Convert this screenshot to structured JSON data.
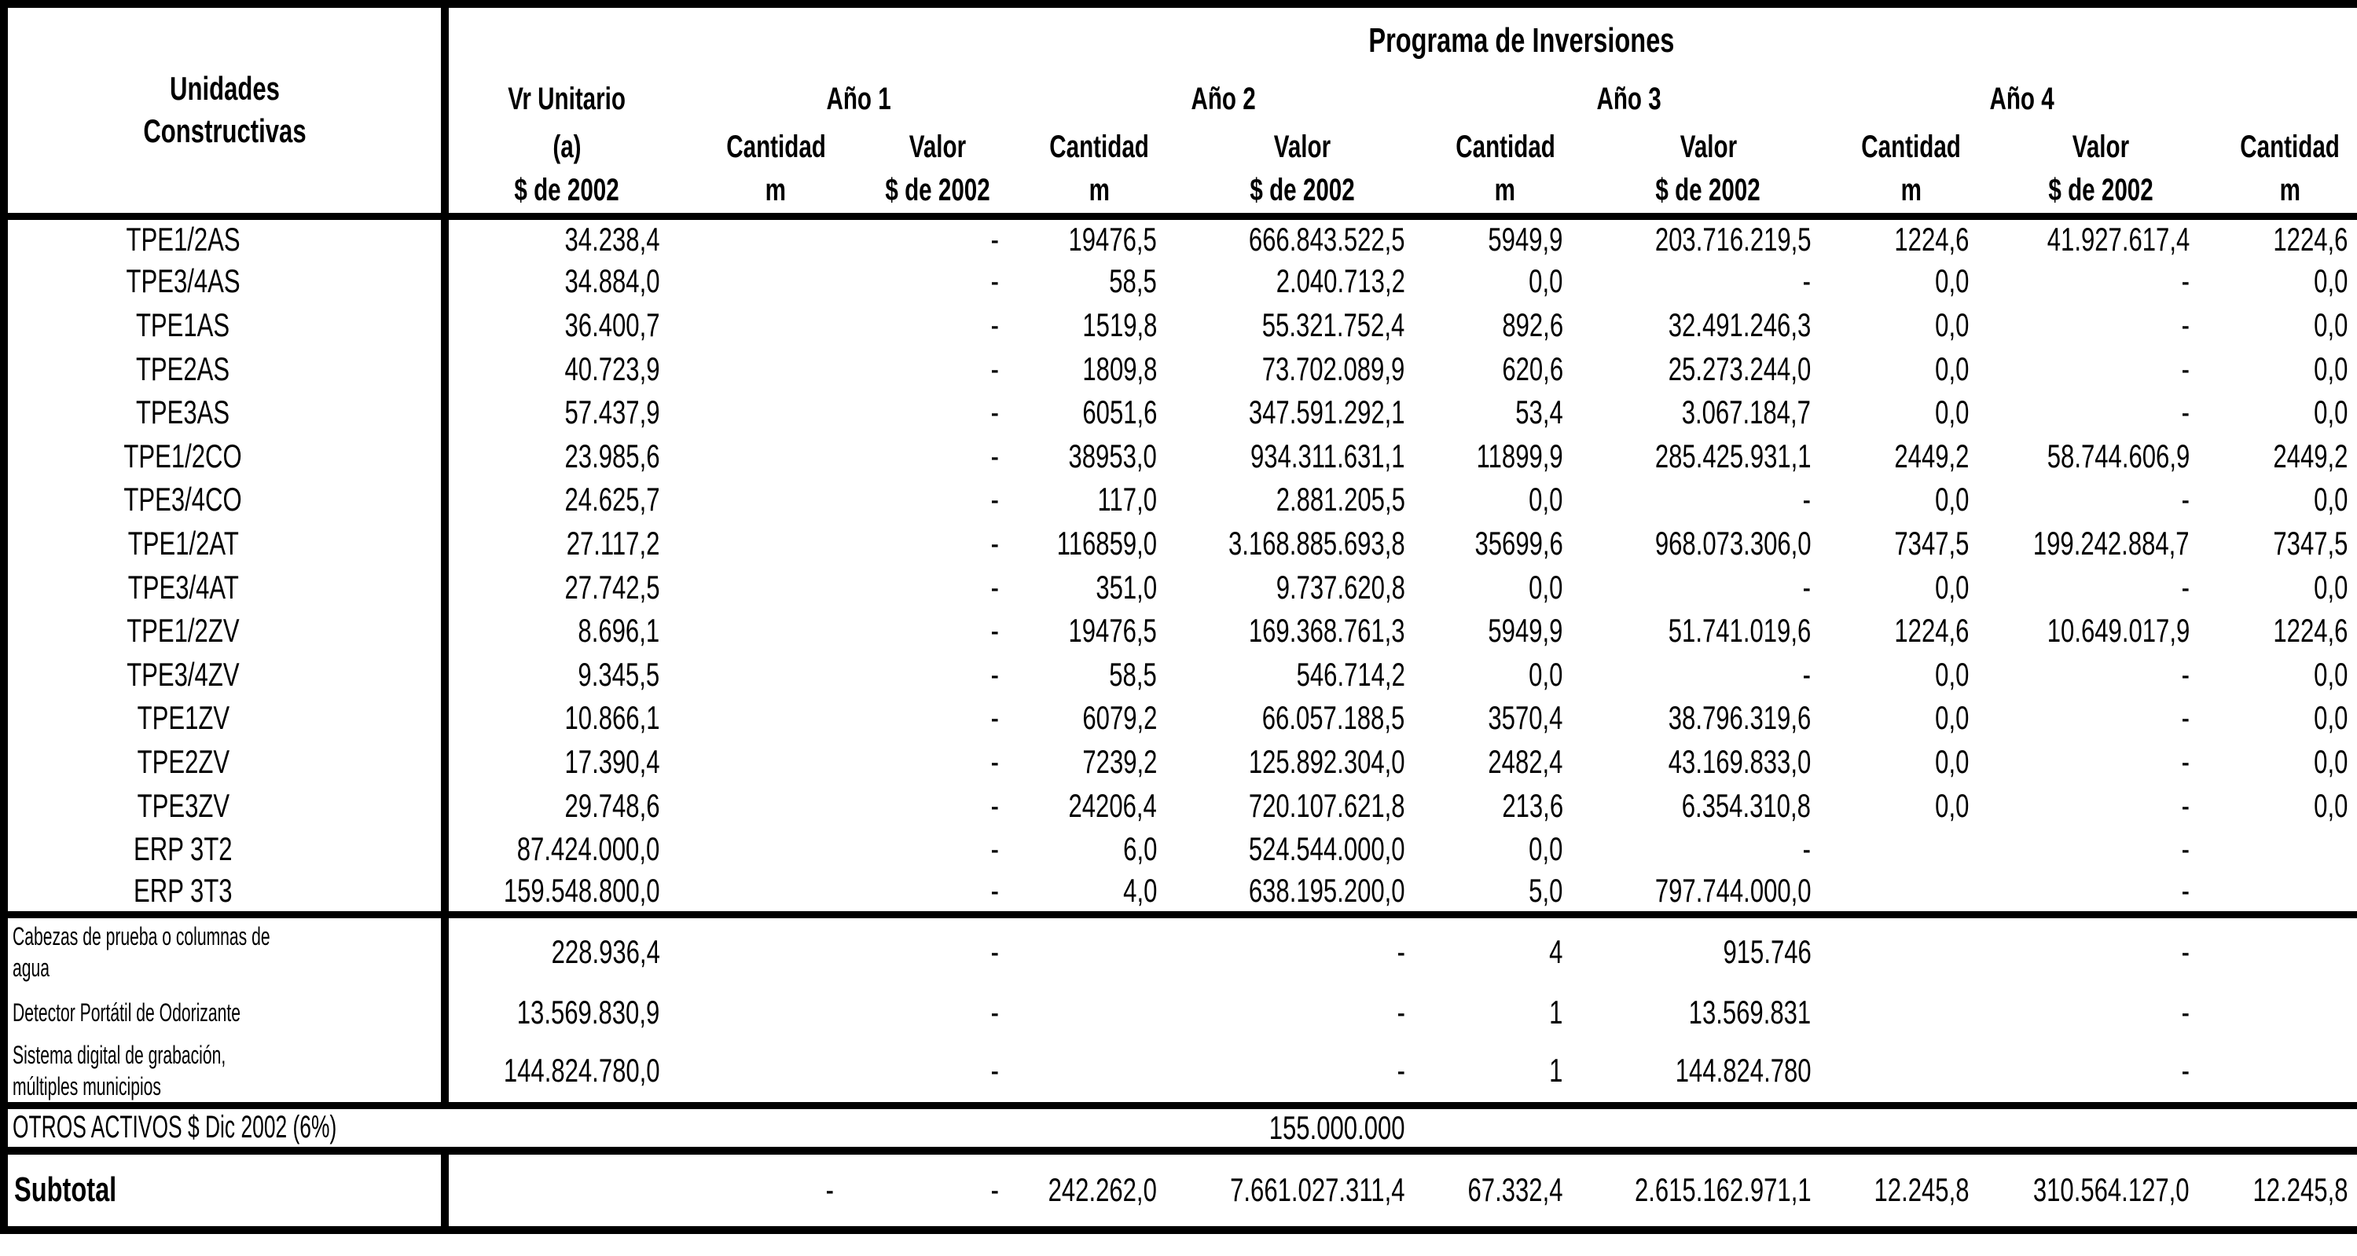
{
  "table": {
    "title": "Programa de Inversiones",
    "col1_header": "Unidades Constructivas",
    "vr_header": {
      "l1": "Vr Unitario",
      "l2": "(a)",
      "l3": "$ de 2002"
    },
    "year_headers": [
      "Año 1",
      "Año 2",
      "Año 3",
      "Año 4"
    ],
    "sub_headers": {
      "cantidad": "Cantidad",
      "valor": "Valor",
      "m": "m",
      "money": "$ de 2002"
    },
    "rows": [
      {
        "label": "TPE1/2AS",
        "vr": "34.238,4",
        "a1c": "",
        "a1v": "-",
        "a2c": "19476,5",
        "a2v": "666.843.522,5",
        "a3c": "5949,9",
        "a3v": "203.716.219,5",
        "a4c": "1224,6",
        "a4v": "41.927.617,4",
        "a5c": "1224,6"
      },
      {
        "label": "TPE3/4AS",
        "vr": "34.884,0",
        "a1c": "",
        "a1v": "-",
        "a2c": "58,5",
        "a2v": "2.040.713,2",
        "a3c": "0,0",
        "a3v": "-",
        "a4c": "0,0",
        "a4v": "-",
        "a5c": "0,0"
      },
      {
        "label": "TPE1AS",
        "vr": "36.400,7",
        "a1c": "",
        "a1v": "-",
        "a2c": "1519,8",
        "a2v": "55.321.752,4",
        "a3c": "892,6",
        "a3v": "32.491.246,3",
        "a4c": "0,0",
        "a4v": "-",
        "a5c": "0,0"
      },
      {
        "label": "TPE2AS",
        "vr": "40.723,9",
        "a1c": "",
        "a1v": "-",
        "a2c": "1809,8",
        "a2v": "73.702.089,9",
        "a3c": "620,6",
        "a3v": "25.273.244,0",
        "a4c": "0,0",
        "a4v": "-",
        "a5c": "0,0"
      },
      {
        "label": "TPE3AS",
        "vr": "57.437,9",
        "a1c": "",
        "a1v": "-",
        "a2c": "6051,6",
        "a2v": "347.591.292,1",
        "a3c": "53,4",
        "a3v": "3.067.184,7",
        "a4c": "0,0",
        "a4v": "-",
        "a5c": "0,0"
      },
      {
        "label": "TPE1/2CO",
        "vr": "23.985,6",
        "a1c": "",
        "a1v": "-",
        "a2c": "38953,0",
        "a2v": "934.311.631,1",
        "a3c": "11899,9",
        "a3v": "285.425.931,1",
        "a4c": "2449,2",
        "a4v": "58.744.606,9",
        "a5c": "2449,2"
      },
      {
        "label": "TPE3/4CO",
        "vr": "24.625,7",
        "a1c": "",
        "a1v": "-",
        "a2c": "117,0",
        "a2v": "2.881.205,5",
        "a3c": "0,0",
        "a3v": "-",
        "a4c": "0,0",
        "a4v": "-",
        "a5c": "0,0"
      },
      {
        "label": "TPE1/2AT",
        "vr": "27.117,2",
        "a1c": "",
        "a1v": "-",
        "a2c": "116859,0",
        "a2v": "3.168.885.693,8",
        "a3c": "35699,6",
        "a3v": "968.073.306,0",
        "a4c": "7347,5",
        "a4v": "199.242.884,7",
        "a5c": "7347,5"
      },
      {
        "label": "TPE3/4AT",
        "vr": "27.742,5",
        "a1c": "",
        "a1v": "-",
        "a2c": "351,0",
        "a2v": "9.737.620,8",
        "a3c": "0,0",
        "a3v": "-",
        "a4c": "0,0",
        "a4v": "-",
        "a5c": "0,0"
      },
      {
        "label": "TPE1/2ZV",
        "vr": "8.696,1",
        "a1c": "",
        "a1v": "-",
        "a2c": "19476,5",
        "a2v": "169.368.761,3",
        "a3c": "5949,9",
        "a3v": "51.741.019,6",
        "a4c": "1224,6",
        "a4v": "10.649.017,9",
        "a5c": "1224,6"
      },
      {
        "label": "TPE3/4ZV",
        "vr": "9.345,5",
        "a1c": "",
        "a1v": "-",
        "a2c": "58,5",
        "a2v": "546.714,2",
        "a3c": "0,0",
        "a3v": "-",
        "a4c": "0,0",
        "a4v": "-",
        "a5c": "0,0"
      },
      {
        "label": "TPE1ZV",
        "vr": "10.866,1",
        "a1c": "",
        "a1v": "-",
        "a2c": "6079,2",
        "a2v": "66.057.188,5",
        "a3c": "3570,4",
        "a3v": "38.796.319,6",
        "a4c": "0,0",
        "a4v": "-",
        "a5c": "0,0"
      },
      {
        "label": "TPE2ZV",
        "vr": "17.390,4",
        "a1c": "",
        "a1v": "-",
        "a2c": "7239,2",
        "a2v": "125.892.304,0",
        "a3c": "2482,4",
        "a3v": "43.169.833,0",
        "a4c": "0,0",
        "a4v": "-",
        "a5c": "0,0"
      },
      {
        "label": "TPE3ZV",
        "vr": "29.748,6",
        "a1c": "",
        "a1v": "-",
        "a2c": "24206,4",
        "a2v": "720.107.621,8",
        "a3c": "213,6",
        "a3v": "6.354.310,8",
        "a4c": "0,0",
        "a4v": "-",
        "a5c": "0,0"
      },
      {
        "label": "ERP 3T2",
        "vr": "87.424.000,0",
        "a1c": "",
        "a1v": "-",
        "a2c": "6,0",
        "a2v": "524.544.000,0",
        "a3c": "0,0",
        "a3v": "-",
        "a4c": "",
        "a4v": "-",
        "a5c": ""
      },
      {
        "label": "ERP 3T3",
        "vr": "159.548.800,0",
        "a1c": "",
        "a1v": "-",
        "a2c": "4,0",
        "a2v": "638.195.200,0",
        "a3c": "5,0",
        "a3v": "797.744.000,0",
        "a4c": "",
        "a4v": "-",
        "a5c": ""
      }
    ],
    "special_rows": [
      {
        "label": "Cabezas de prueba o columnas de agua",
        "vr": "228.936,4",
        "a1c": "",
        "a1v": "-",
        "a2c": "",
        "a2v": "-",
        "a3c": "4",
        "a3v": "915.746",
        "a4c": "",
        "a4v": "-",
        "a5c": ""
      },
      {
        "label": "Detector Portátil de Odorizante",
        "vr": "13.569.830,9",
        "a1c": "",
        "a1v": "-",
        "a2c": "",
        "a2v": "-",
        "a3c": "1",
        "a3v": "13.569.831",
        "a4c": "",
        "a4v": "-",
        "a5c": ""
      },
      {
        "label": "Sistema digital de grabación, múltiples municipios",
        "vr": "144.824.780,0",
        "a1c": "",
        "a1v": "-",
        "a2c": "",
        "a2v": "-",
        "a3c": "1",
        "a3v": "144.824.780",
        "a4c": "",
        "a4v": "-",
        "a5c": ""
      }
    ],
    "otros_row": {
      "label": "OTROS ACTIVOS $ Dic 2002 (6%)",
      "a2v": "155.000.000"
    },
    "subtotal_row": {
      "label": "Subtotal",
      "vr": "",
      "a1c": "-",
      "a1v": "-",
      "a2c": "242.262,0",
      "a2v": "7.661.027.311,4",
      "a3c": "67.332,4",
      "a3v": "2.615.162.971,1",
      "a4c": "12.245,8",
      "a4v": "310.564.127,0",
      "a5c": "12.245,8"
    }
  }
}
